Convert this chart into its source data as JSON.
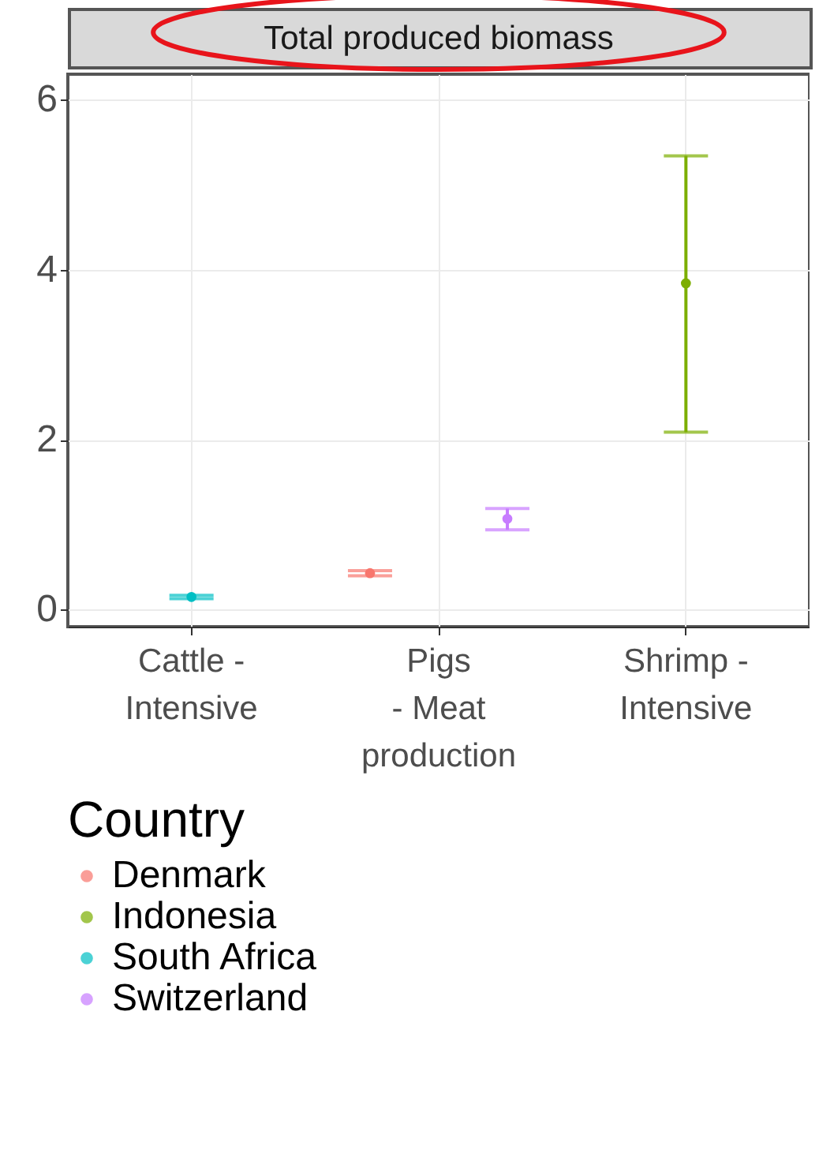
{
  "chart_data": {
    "type": "scatter",
    "title": "Total produced biomass",
    "legend_title": "Country",
    "categories": [
      "Cattle -\nIntensive",
      "Pigs\n- Meat\nproduction",
      "Shrimp -\nIntensive"
    ],
    "series": [
      {
        "name": "Denmark",
        "color": "#f8766d",
        "values": [
          null,
          0.43,
          null
        ],
        "errors": [
          null,
          0.03,
          null
        ]
      },
      {
        "name": "Indonesia",
        "color": "#7cae00",
        "values": [
          null,
          null,
          3.84
        ],
        "errors": [
          null,
          null,
          [
            2.09,
            5.34
          ]
        ]
      },
      {
        "name": "South Africa",
        "color": "#00bfc4",
        "values": [
          0.15,
          null,
          null
        ],
        "errors": [
          0.02,
          null,
          null
        ]
      },
      {
        "name": "Switzerland",
        "color": "#c77cff",
        "values": [
          null,
          1.07,
          null
        ],
        "errors": [
          null,
          [
            0.94,
            1.19
          ],
          null
        ]
      }
    ],
    "ylim": [
      -0.2,
      6.3
    ],
    "yticks": [
      0,
      2,
      4,
      6
    ],
    "grid": true,
    "legend": "bottom",
    "marker": "circle"
  }
}
